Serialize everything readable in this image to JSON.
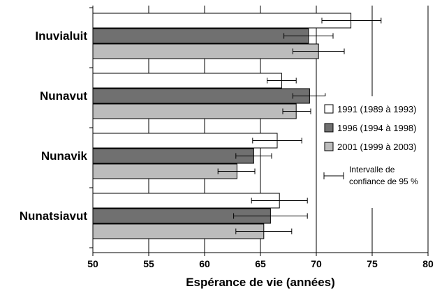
{
  "chart_data": {
    "type": "bar",
    "orientation": "horizontal",
    "categories": [
      "Inuvialuit",
      "Nunavut",
      "Nunavik",
      "Nunatsiavut"
    ],
    "series": [
      {
        "name": "1991 (1989 à 1993)",
        "color": "#ffffff",
        "values": [
          73.1,
          66.9,
          66.5,
          66.7
        ],
        "ci_low": [
          70.5,
          65.6,
          64.3,
          64.2
        ],
        "ci_high": [
          75.8,
          68.2,
          68.7,
          69.2
        ]
      },
      {
        "name": "1996 (1994 à 1998)",
        "color": "#707070",
        "values": [
          69.3,
          69.4,
          64.4,
          65.9
        ],
        "ci_low": [
          67.1,
          67.9,
          62.8,
          62.6
        ],
        "ci_high": [
          71.5,
          70.8,
          66.0,
          69.2
        ]
      },
      {
        "name": "2001 (1999 à 2003)",
        "color": "#bcbcbc",
        "values": [
          70.2,
          68.2,
          62.9,
          65.3
        ],
        "ci_low": [
          67.9,
          67.0,
          61.2,
          62.8
        ],
        "ci_high": [
          72.5,
          69.5,
          64.5,
          67.8
        ]
      }
    ],
    "xlabel": "Espérance de vie (années)",
    "xlim": [
      50,
      80
    ],
    "xticks": [
      "50",
      "55",
      "60",
      "65",
      "70",
      "75",
      "80"
    ],
    "grid": "vertical",
    "legend": {
      "placement": "right",
      "ci_label_line1": "Intervalle de",
      "ci_label_line2": "confiance de 95 %"
    }
  }
}
